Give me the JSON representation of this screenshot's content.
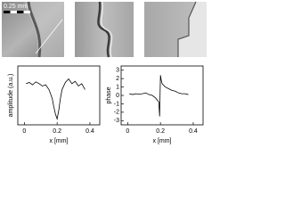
{
  "scale_bar": "0.25 mm",
  "chart_data": [
    {
      "type": "line",
      "ylabel": "amplitude (a.u.)",
      "xlabel": "x [mm]",
      "x": [
        0.01,
        0.03,
        0.05,
        0.07,
        0.09,
        0.11,
        0.13,
        0.15,
        0.17,
        0.18,
        0.19,
        0.2,
        0.21,
        0.22,
        0.23,
        0.25,
        0.27,
        0.29,
        0.31,
        0.33,
        0.35,
        0.37
      ],
      "series": [
        {
          "color": "#000000",
          "values": [
            0.7,
            0.72,
            0.68,
            0.73,
            0.7,
            0.66,
            0.68,
            0.6,
            0.45,
            0.3,
            0.18,
            0.1,
            0.25,
            0.45,
            0.6,
            0.72,
            0.78,
            0.7,
            0.74,
            0.66,
            0.7,
            0.6
          ]
        }
      ],
      "xlim": [
        -0.04,
        0.46
      ],
      "xticks": [
        0,
        0.2,
        0.4
      ],
      "ylim": [
        0,
        1
      ]
    },
    {
      "type": "line",
      "ylabel": "phase",
      "xlabel": "x [mm]",
      "x": [
        0.01,
        0.03,
        0.05,
        0.07,
        0.09,
        0.11,
        0.13,
        0.15,
        0.17,
        0.19,
        0.195,
        0.2,
        0.205,
        0.21,
        0.23,
        0.25,
        0.27,
        0.29,
        0.31,
        0.33,
        0.35,
        0.37
      ],
      "series": [
        {
          "color": "#000000",
          "values": [
            0.2,
            0.1,
            0.2,
            0.15,
            0.2,
            0.3,
            0.1,
            0.0,
            -0.3,
            -0.8,
            -2.5,
            2.4,
            1.8,
            1.4,
            1.0,
            0.8,
            0.6,
            0.5,
            0.3,
            0.2,
            0.2,
            0.1
          ]
        }
      ],
      "xlim": [
        -0.04,
        0.46
      ],
      "xticks": [
        0,
        0.2,
        0.4
      ],
      "ylim": [
        -3.5,
        3.5
      ],
      "yticks": [
        -3,
        -2,
        -1,
        0,
        1,
        2,
        3
      ]
    }
  ]
}
